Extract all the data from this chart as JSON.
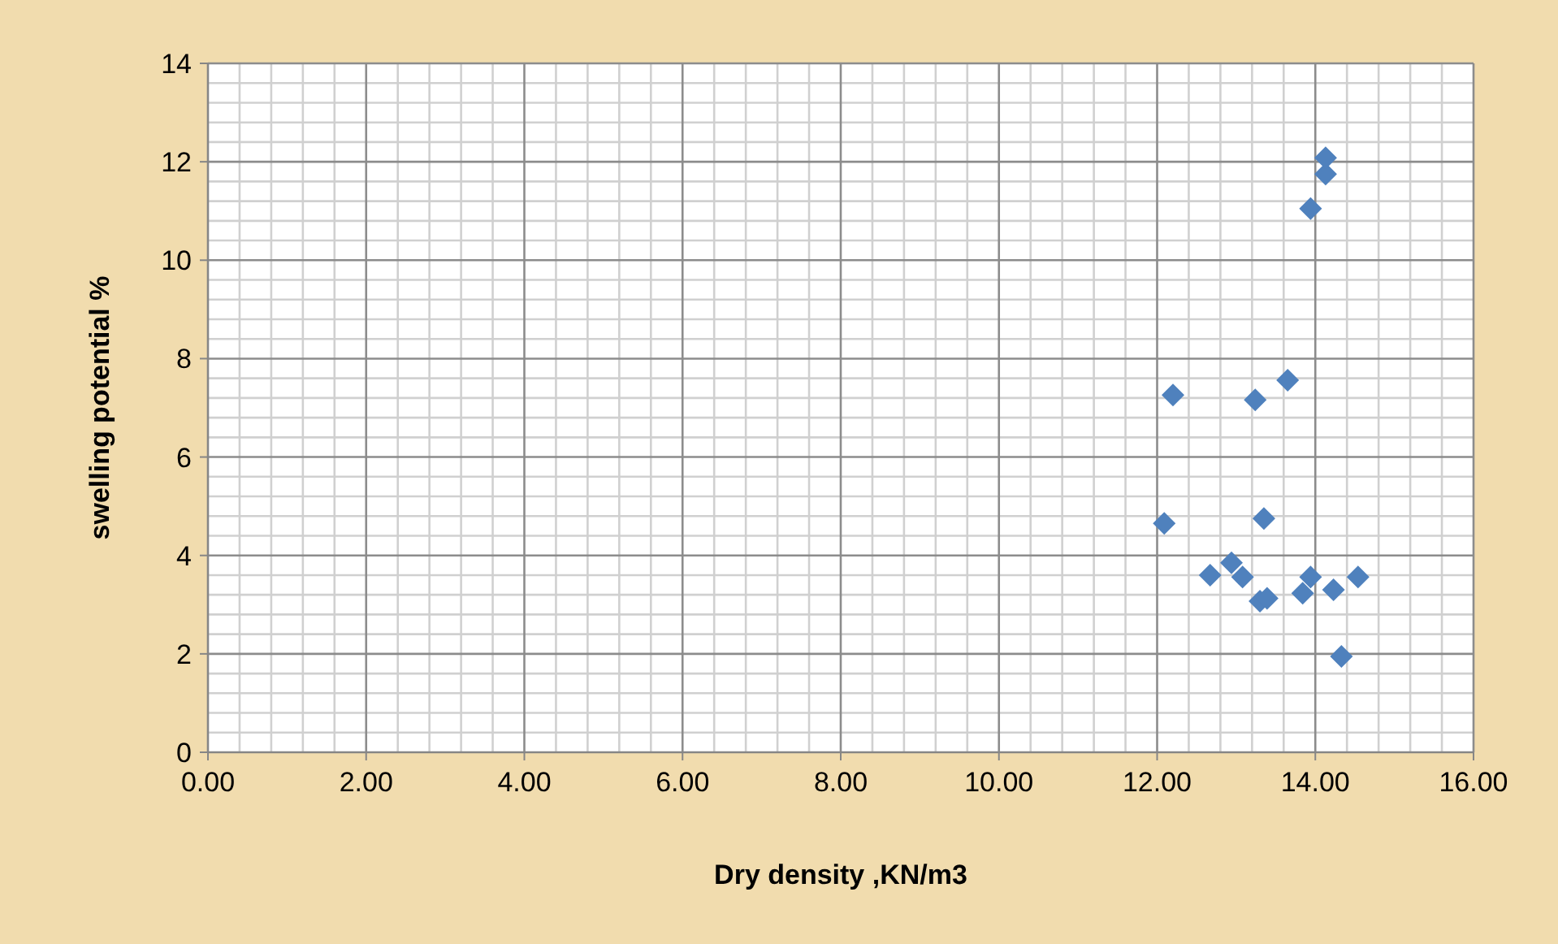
{
  "chart_data": {
    "type": "scatter",
    "xlabel": "Dry density ,KN/m3",
    "ylabel": "swelling potential %",
    "x": [
      12.09,
      12.2,
      12.67,
      12.94,
      13.08,
      13.24,
      13.35,
      13.3,
      13.39,
      13.65,
      13.84,
      13.94,
      13.94,
      14.13,
      14.13,
      14.23,
      14.33,
      14.54
    ],
    "values": [
      4.65,
      7.26,
      3.6,
      3.85,
      3.56,
      7.16,
      4.75,
      3.07,
      3.13,
      7.56,
      3.23,
      3.56,
      11.05,
      11.75,
      12.08,
      3.3,
      1.95,
      3.56
    ],
    "color": "#4f81bd",
    "marker": "diamond",
    "grid": true,
    "xlim": [
      0,
      16
    ],
    "xticks": [
      {
        "value": 0,
        "label": "0.00"
      },
      {
        "value": 2,
        "label": "2.00"
      },
      {
        "value": 4,
        "label": "4.00"
      },
      {
        "value": 6,
        "label": "6.00"
      },
      {
        "value": 8,
        "label": "8.00"
      },
      {
        "value": 10,
        "label": "10.00"
      },
      {
        "value": 12,
        "label": "12.00"
      },
      {
        "value": 14,
        "label": "14.00"
      },
      {
        "value": 16,
        "label": "16.00"
      }
    ],
    "ylim": [
      0,
      14
    ],
    "yticks": [
      0,
      2,
      4,
      6,
      8,
      10,
      12,
      14
    ]
  }
}
